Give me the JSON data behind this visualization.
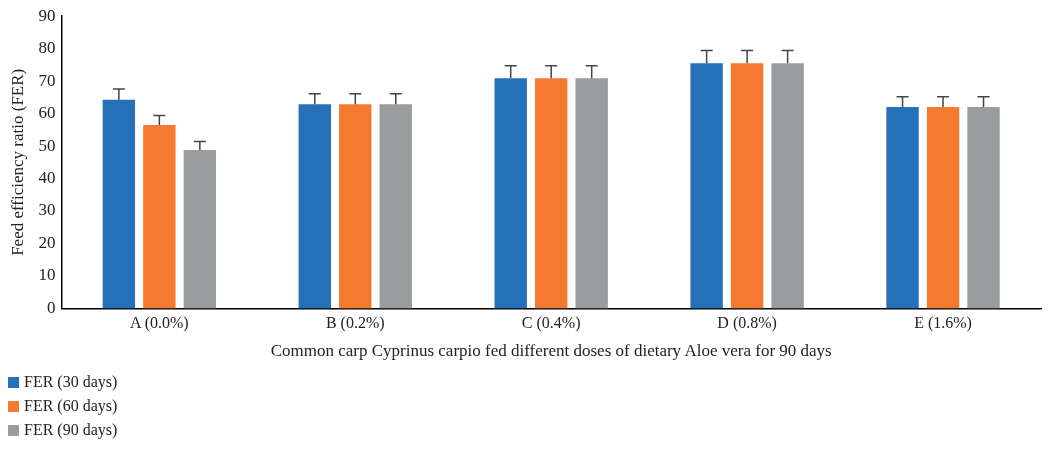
{
  "chart_data": {
    "type": "bar",
    "ylabel": "Feed efficiency ratio (FER)",
    "xlabel": "Common carp Cyprinus carpio fed different doses of dietary Aloe vera for 90 days",
    "categories": [
      "A (0.0%)",
      "B (0.2%)",
      "C (0.4%)",
      "D (0.8%)",
      "E (1.6%)"
    ],
    "series": [
      {
        "name": "FER (30 days)",
        "color": "#2471ba",
        "values": [
          64.3,
          62.9,
          70.9,
          75.5,
          62
        ],
        "errors": [
          [
            64.3,
            67.6
          ],
          [
            62.9,
            66.1
          ],
          [
            70.9,
            74.7
          ],
          [
            75.5,
            79.4
          ],
          [
            62,
            65.2
          ]
        ]
      },
      {
        "name": "FER (60 days)",
        "color": "#f37a2e",
        "values": [
          56.5,
          62.9,
          70.9,
          75.5,
          62
        ],
        "errors": [
          [
            56.5,
            59.4
          ],
          [
            62.9,
            66.1
          ],
          [
            70.9,
            74.7
          ],
          [
            75.5,
            79.4
          ],
          [
            62,
            65.2
          ]
        ]
      },
      {
        "name": "FER (90 days)",
        "color": "#9a9d9e",
        "values": [
          48.8,
          62.9,
          70.9,
          75.5,
          62
        ],
        "errors": [
          [
            48.8,
            51.4
          ],
          [
            62.9,
            66.1
          ],
          [
            70.9,
            74.7
          ],
          [
            75.5,
            79.4
          ],
          [
            62,
            65.2
          ]
        ]
      }
    ],
    "ylim": [
      0,
      90
    ],
    "yticks": [
      0,
      10,
      20,
      30,
      40,
      50,
      60,
      70,
      80,
      90
    ],
    "grid": false,
    "legend": "bottom left"
  }
}
